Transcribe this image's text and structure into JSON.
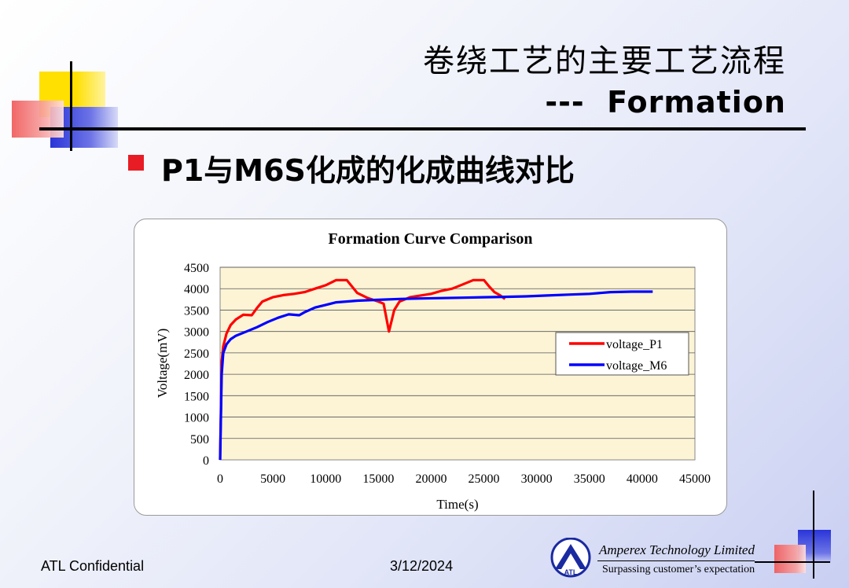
{
  "slide": {
    "title_cn": "卷绕工艺的主要工艺流程",
    "title_en": "---  Formation",
    "heading": "P1与M6S化成的化成曲线对比",
    "footer_left": "ATL Confidential",
    "footer_date": "3/12/2024",
    "company": "Amperex Technology Limited",
    "slogan": "Surpassing customer’s expectation",
    "logo_text": "ATL"
  },
  "colors": {
    "accent_red": "#e81c24",
    "deco_yellow": "#ffe000",
    "deco_blue": "#2a35d8",
    "deco_pink": "#f05a5a",
    "plot_bg": "#fdf4d6",
    "series_p1": "#ff0000",
    "series_m6": "#0000ff"
  },
  "chart_data": {
    "type": "line",
    "title": "Formation Curve Comparison",
    "xlabel": "Time(s)",
    "ylabel": "Voltage(mV)",
    "xlim": [
      0,
      45000
    ],
    "ylim": [
      0,
      4500
    ],
    "x_ticks": [
      "0",
      "5000",
      "10000",
      "15000",
      "20000",
      "25000",
      "30000",
      "35000",
      "40000",
      "45000"
    ],
    "y_ticks": [
      "0",
      "500",
      "1000",
      "1500",
      "2000",
      "2500",
      "3000",
      "3500",
      "4000",
      "4500"
    ],
    "legend_position": "right",
    "grid": true,
    "series": [
      {
        "name": "voltage_P1",
        "color": "#ff0000",
        "x": [
          0,
          150,
          300,
          600,
          1000,
          1500,
          2200,
          3000,
          3500,
          4000,
          5000,
          6000,
          7000,
          8000,
          9000,
          10000,
          11000,
          12000,
          12500,
          13000,
          14000,
          15000,
          15500,
          16000,
          16500,
          17000,
          18000,
          19000,
          20000,
          21000,
          22000,
          23000,
          24000,
          25000,
          25500,
          26000,
          26500,
          27000
        ],
        "values": [
          0,
          2300,
          2650,
          2950,
          3150,
          3280,
          3390,
          3380,
          3550,
          3700,
          3800,
          3850,
          3880,
          3920,
          4000,
          4080,
          4200,
          4200,
          4050,
          3900,
          3780,
          3700,
          3650,
          3000,
          3500,
          3700,
          3800,
          3840,
          3880,
          3950,
          4000,
          4100,
          4200,
          4200,
          4050,
          3920,
          3850,
          3760
        ]
      },
      {
        "name": "voltage_M6",
        "color": "#0000ff",
        "x": [
          0,
          150,
          300,
          600,
          1000,
          1500,
          2500,
          3500,
          4500,
          5500,
          6500,
          7500,
          8000,
          9000,
          10000,
          11000,
          13000,
          15000,
          17000,
          19000,
          21000,
          23000,
          25000,
          27000,
          29000,
          31000,
          33000,
          35000,
          37000,
          39000,
          41000
        ],
        "values": [
          0,
          2000,
          2500,
          2700,
          2820,
          2900,
          3000,
          3100,
          3220,
          3320,
          3400,
          3380,
          3450,
          3560,
          3620,
          3680,
          3720,
          3740,
          3760,
          3770,
          3780,
          3790,
          3800,
          3810,
          3820,
          3840,
          3860,
          3880,
          3920,
          3930,
          3930
        ]
      }
    ]
  }
}
